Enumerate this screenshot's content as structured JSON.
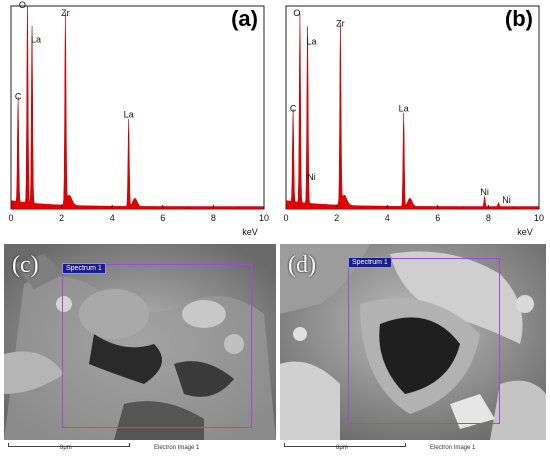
{
  "panels": {
    "a": {
      "label": "(a)",
      "x_unit": "keV"
    },
    "b": {
      "label": "(b)",
      "x_unit": "keV"
    },
    "c": {
      "label": "(c)",
      "spectrum_tag": "Spectrum 1",
      "scale": "8μm",
      "image_caption": "Electron Image 1"
    },
    "d": {
      "label": "(d)",
      "spectrum_tag": "Spectrum 1",
      "scale": "8μm",
      "image_caption": "Electron Image 1"
    }
  },
  "chart_data": [
    {
      "type": "line",
      "panel": "a",
      "xlabel": "keV",
      "xlim": [
        0,
        10
      ],
      "xticks": [
        "0",
        "2",
        "4",
        "6",
        "8",
        "10"
      ],
      "color": "#e00000",
      "peaks": [
        {
          "x": 0.28,
          "h": 0.52,
          "label": "C"
        },
        {
          "x": 0.65,
          "h": 0.97,
          "label": "O"
        },
        {
          "x": 0.83,
          "h": 0.88,
          "label": "La"
        },
        {
          "x": 2.15,
          "h": 0.93,
          "label": "Zr"
        },
        {
          "x": 4.65,
          "h": 0.43,
          "label": "La"
        }
      ]
    },
    {
      "type": "line",
      "panel": "b",
      "xlabel": "keV",
      "xlim": [
        0,
        10
      ],
      "xticks": [
        "0",
        "2",
        "4",
        "6",
        "8",
        "10"
      ],
      "color": "#e00000",
      "peaks": [
        {
          "x": 0.28,
          "h": 0.46,
          "label": "C"
        },
        {
          "x": 0.55,
          "h": 0.93,
          "label": "O"
        },
        {
          "x": 0.85,
          "h": 0.87,
          "label": "La"
        },
        {
          "x": 0.85,
          "h": 0.3,
          "label": "Ni"
        },
        {
          "x": 2.15,
          "h": 0.88,
          "label": "Zr"
        },
        {
          "x": 4.65,
          "h": 0.46,
          "label": "La"
        },
        {
          "x": 7.85,
          "h": 0.05,
          "label": "Ni"
        },
        {
          "x": 8.4,
          "h": 0.02,
          "label": "Ni"
        }
      ]
    }
  ]
}
